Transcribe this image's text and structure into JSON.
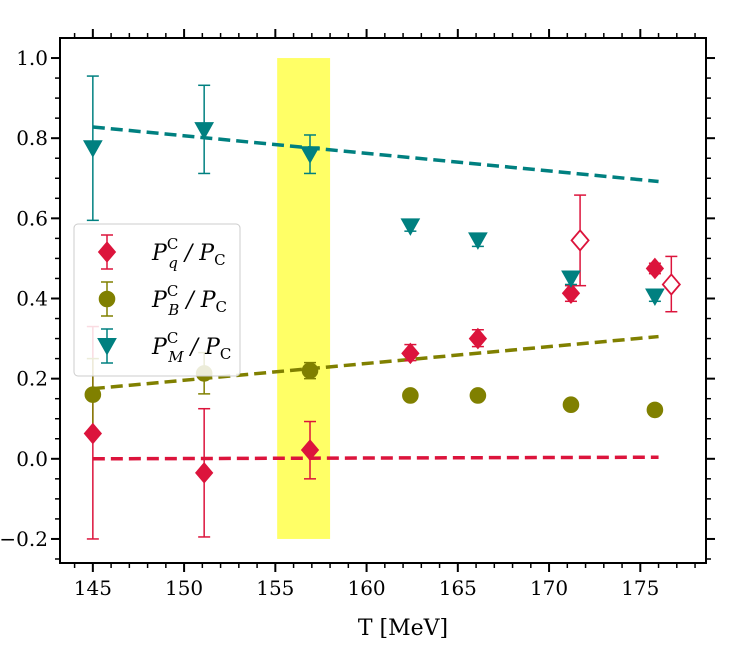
{
  "chart_data": {
    "type": "scatter",
    "title": "",
    "xlabel": "T [MeV]",
    "ylabel": "",
    "xlim": [
      143.2,
      178.6
    ],
    "ylim": [
      -0.26,
      1.05
    ],
    "xticks": [
      145,
      150,
      155,
      160,
      165,
      170,
      175
    ],
    "xtick_labels": [
      "145",
      "150",
      "155",
      "160",
      "165",
      "170",
      "175"
    ],
    "yticks": [
      -0.2,
      0.0,
      0.2,
      0.4,
      0.6,
      0.8,
      1.0
    ],
    "ytick_labels": [
      "−0.2",
      "0.0",
      "0.2",
      "0.4",
      "0.6",
      "0.8",
      "1.0"
    ],
    "highlight_band": {
      "x": [
        155.1,
        158.0
      ],
      "y": [
        -0.2,
        1.0
      ],
      "color": "#ffff66"
    },
    "legend": {
      "position": "center-left",
      "entries": [
        {
          "series": "q",
          "label": "P",
          "sup": "C",
          "sub": "q",
          "suffix": " / P",
          "suffix_sub": "C"
        },
        {
          "series": "B",
          "label": "P",
          "sup": "C",
          "sub": "B",
          "suffix": " / P",
          "suffix_sub": "C"
        },
        {
          "series": "M",
          "label": "P",
          "sup": "C",
          "sub": "M",
          "suffix": " / P",
          "suffix_sub": "C"
        }
      ]
    },
    "series": [
      {
        "id": "q",
        "name": "P^C_q / P_C",
        "color": "#dc143c",
        "marker": "diamond",
        "points": [
          {
            "x": 145.0,
            "y": 0.063,
            "ylow": -0.2,
            "yhigh": 0.33
          },
          {
            "x": 151.1,
            "y": -0.035,
            "ylow": -0.195,
            "yhigh": 0.125
          },
          {
            "x": 156.9,
            "y": 0.022,
            "ylow": -0.05,
            "yhigh": 0.093
          },
          {
            "x": 162.4,
            "y": 0.263,
            "ylow": 0.245,
            "yhigh": 0.285
          },
          {
            "x": 166.1,
            "y": 0.3,
            "ylow": 0.28,
            "yhigh": 0.322
          },
          {
            "x": 171.2,
            "y": 0.413,
            "ylow": 0.393,
            "yhigh": 0.432
          },
          {
            "x": 175.8,
            "y": 0.475,
            "ylow": 0.462,
            "yhigh": 0.488
          }
        ],
        "open_points": [
          {
            "x": 171.7,
            "y": 0.545,
            "ylow": 0.432,
            "yhigh": 0.658
          },
          {
            "x": 176.7,
            "y": 0.435,
            "ylow": 0.367,
            "yhigh": 0.505
          }
        ],
        "fit_line": {
          "x": [
            145.0,
            176.0
          ],
          "y": [
            0.0,
            0.004
          ]
        }
      },
      {
        "id": "B",
        "name": "P^C_B / P_C",
        "color": "#808000",
        "marker": "circle",
        "points": [
          {
            "x": 145.0,
            "y": 0.16,
            "ylow": 0.07,
            "yhigh": 0.25
          },
          {
            "x": 151.1,
            "y": 0.213,
            "ylow": 0.162,
            "yhigh": 0.265
          },
          {
            "x": 156.9,
            "y": 0.22,
            "ylow": 0.2,
            "yhigh": 0.24
          },
          {
            "x": 162.4,
            "y": 0.158,
            "ylow": 0.15,
            "yhigh": 0.166
          },
          {
            "x": 166.1,
            "y": 0.158,
            "ylow": 0.15,
            "yhigh": 0.166
          },
          {
            "x": 171.2,
            "y": 0.135,
            "ylow": 0.128,
            "yhigh": 0.142
          },
          {
            "x": 175.8,
            "y": 0.122,
            "ylow": 0.116,
            "yhigh": 0.128
          }
        ],
        "fit_line": {
          "x": [
            145.0,
            176.0
          ],
          "y": [
            0.175,
            0.305
          ]
        }
      },
      {
        "id": "M",
        "name": "P^C_M / P_C",
        "color": "#008080",
        "marker": "triangle-down",
        "points": [
          {
            "x": 145.0,
            "y": 0.775,
            "ylow": 0.595,
            "yhigh": 0.955
          },
          {
            "x": 151.1,
            "y": 0.82,
            "ylow": 0.712,
            "yhigh": 0.932
          },
          {
            "x": 156.9,
            "y": 0.76,
            "ylow": 0.712,
            "yhigh": 0.808
          },
          {
            "x": 162.4,
            "y": 0.58,
            "ylow": 0.568,
            "yhigh": 0.592
          },
          {
            "x": 166.1,
            "y": 0.545,
            "ylow": 0.53,
            "yhigh": 0.56
          },
          {
            "x": 171.2,
            "y": 0.45,
            "ylow": 0.435,
            "yhigh": 0.465
          },
          {
            "x": 175.8,
            "y": 0.405,
            "ylow": 0.393,
            "yhigh": 0.417
          }
        ],
        "fit_line": {
          "x": [
            145.0,
            176.0
          ],
          "y": [
            0.828,
            0.692
          ]
        }
      }
    ]
  }
}
